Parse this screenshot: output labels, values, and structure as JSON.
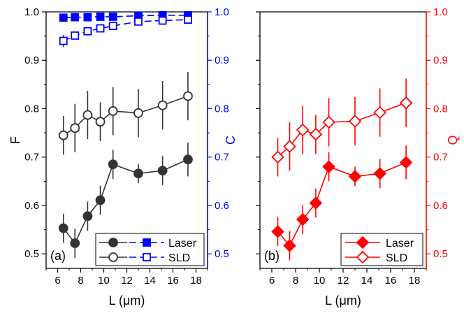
{
  "chart_data": [
    {
      "type": "line",
      "panel_label": "(a)",
      "xlabel": "L (μm)",
      "ylabel_left": "F",
      "ylabel_right": "C",
      "xlim": [
        5,
        19
      ],
      "ylim_left": [
        0.47,
        1.0
      ],
      "ylim_right": [
        0.47,
        1.0
      ],
      "x_ticks": [
        "6",
        "8",
        "10",
        "12",
        "14",
        "16",
        "18"
      ],
      "y_ticks_left": [
        "0.5",
        "0.6",
        "0.7",
        "0.8",
        "0.9",
        "1.0"
      ],
      "y_ticks_right": [
        "0.5",
        "0.6",
        "0.7",
        "0.8",
        "0.9",
        "1.0"
      ],
      "left_color": "#000000",
      "right_color": "#0000ff",
      "legend_position": "bottom-right",
      "legend": [
        "Laser",
        "SLD"
      ],
      "series": [
        {
          "name": "Laser",
          "measure": "F",
          "axis": "left",
          "color": "#333333",
          "marker": "circle",
          "filled": true,
          "x": [
            6.5,
            7.5,
            8.6,
            9.7,
            10.8,
            13.0,
            15.1,
            17.3
          ],
          "y": [
            0.553,
            0.522,
            0.578,
            0.611,
            0.685,
            0.666,
            0.672,
            0.695
          ],
          "err": [
            0.03,
            0.03,
            0.03,
            0.03,
            0.03,
            0.02,
            0.03,
            0.035
          ]
        },
        {
          "name": "SLD",
          "measure": "F",
          "axis": "left",
          "color": "#333333",
          "marker": "circle",
          "filled": false,
          "x": [
            6.5,
            7.5,
            8.6,
            9.7,
            10.8,
            13.0,
            15.1,
            17.3
          ],
          "y": [
            0.745,
            0.76,
            0.787,
            0.773,
            0.795,
            0.791,
            0.807,
            0.826
          ],
          "err": [
            0.04,
            0.05,
            0.05,
            0.04,
            0.05,
            0.05,
            0.05,
            0.05
          ]
        },
        {
          "name": "Laser",
          "measure": "C",
          "axis": "right",
          "color": "#0000ff",
          "marker": "square",
          "filled": true,
          "x": [
            6.5,
            7.5,
            8.6,
            9.7,
            10.8,
            13.0,
            15.1,
            17.3
          ],
          "y": [
            0.988,
            0.989,
            0.989,
            0.99,
            0.99,
            0.992,
            0.993,
            0.993
          ],
          "err": [
            0.003,
            0.003,
            0.003,
            0.003,
            0.003,
            0.003,
            0.003,
            0.003
          ]
        },
        {
          "name": "SLD",
          "measure": "C",
          "axis": "right",
          "color": "#0000ff",
          "marker": "square",
          "filled": false,
          "x": [
            6.5,
            7.5,
            8.6,
            9.7,
            10.8,
            13.0,
            15.1,
            17.3
          ],
          "y": [
            0.94,
            0.951,
            0.96,
            0.966,
            0.971,
            0.98,
            0.982,
            0.984
          ],
          "err": [
            0.012,
            0.008,
            0.006,
            0.005,
            0.004,
            0.003,
            0.003,
            0.003
          ]
        }
      ]
    },
    {
      "type": "line",
      "panel_label": "(b)",
      "xlabel": "L (μm)",
      "ylabel_right": "Q",
      "xlim": [
        5,
        19
      ],
      "ylim_right": [
        0.47,
        1.0
      ],
      "x_ticks": [
        "6",
        "8",
        "10",
        "12",
        "14",
        "16",
        "18"
      ],
      "y_ticks_right": [
        "0.5",
        "0.6",
        "0.7",
        "0.8",
        "0.9",
        "1.0"
      ],
      "right_color": "#ff0000",
      "legend_position": "bottom-right",
      "legend": [
        "Laser",
        "SLD"
      ],
      "series": [
        {
          "name": "Laser",
          "measure": "Q",
          "axis": "right",
          "color": "#ff0000",
          "marker": "diamond",
          "filled": true,
          "x": [
            6.5,
            7.5,
            8.6,
            9.7,
            10.8,
            13.0,
            15.1,
            17.3
          ],
          "y": [
            0.546,
            0.517,
            0.571,
            0.605,
            0.68,
            0.66,
            0.666,
            0.689
          ],
          "err": [
            0.03,
            0.03,
            0.03,
            0.03,
            0.03,
            0.02,
            0.03,
            0.035
          ]
        },
        {
          "name": "SLD",
          "measure": "Q",
          "axis": "right",
          "color": "#ff0000",
          "marker": "diamond",
          "filled": false,
          "x": [
            6.5,
            7.5,
            8.6,
            9.7,
            10.8,
            13.0,
            15.1,
            17.3
          ],
          "y": [
            0.7,
            0.722,
            0.756,
            0.747,
            0.772,
            0.774,
            0.792,
            0.812
          ],
          "err": [
            0.04,
            0.05,
            0.05,
            0.04,
            0.05,
            0.05,
            0.05,
            0.05
          ]
        }
      ]
    }
  ]
}
